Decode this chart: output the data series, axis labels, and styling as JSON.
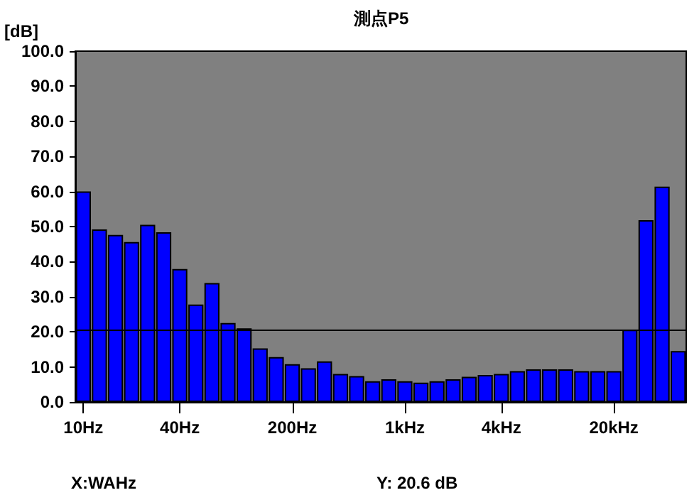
{
  "chart_data": {
    "type": "bar",
    "title": "測点P5",
    "ylabel": "[dB]",
    "categories": [
      "10Hz",
      null,
      null,
      null,
      null,
      null,
      "40Hz",
      null,
      null,
      null,
      null,
      null,
      null,
      "200Hz",
      null,
      null,
      null,
      null,
      null,
      null,
      "1kHz",
      null,
      null,
      null,
      null,
      null,
      "4kHz",
      null,
      null,
      null,
      null,
      null,
      null,
      "20kHz",
      null,
      null,
      null,
      null
    ],
    "values": [
      60.0,
      49.2,
      47.6,
      45.6,
      50.5,
      48.4,
      37.9,
      27.8,
      33.9,
      22.5,
      21.0,
      15.3,
      12.8,
      10.8,
      9.6,
      11.6,
      8.0,
      7.4,
      5.9,
      6.5,
      5.9,
      5.5,
      5.9,
      6.5,
      7.2,
      7.7,
      8.0,
      8.8,
      9.3,
      9.3,
      9.3,
      8.8,
      8.8,
      8.8,
      20.6,
      51.8,
      61.4,
      14.5
    ],
    "color": "#0000ff",
    "ylim": [
      0,
      100
    ],
    "yticks": [
      {
        "value": 0,
        "label": "0.0"
      },
      {
        "value": 10,
        "label": "10.0"
      },
      {
        "value": 20,
        "label": "20.0"
      },
      {
        "value": 30,
        "label": "30.0"
      },
      {
        "value": 40,
        "label": "40.0"
      },
      {
        "value": 50,
        "label": "50.0"
      },
      {
        "value": 60,
        "label": "60.0"
      },
      {
        "value": 70,
        "label": "70.0"
      },
      {
        "value": 80,
        "label": "80.0"
      },
      {
        "value": 90,
        "label": "90.0"
      },
      {
        "value": 100,
        "label": "100.0"
      }
    ],
    "ref_lines": [
      {
        "axis": "y",
        "value": 20.6,
        "color": "#000000"
      }
    ],
    "annotations": [
      "X:WAHz",
      "Y: 20.6 dB"
    ],
    "grid": false
  }
}
